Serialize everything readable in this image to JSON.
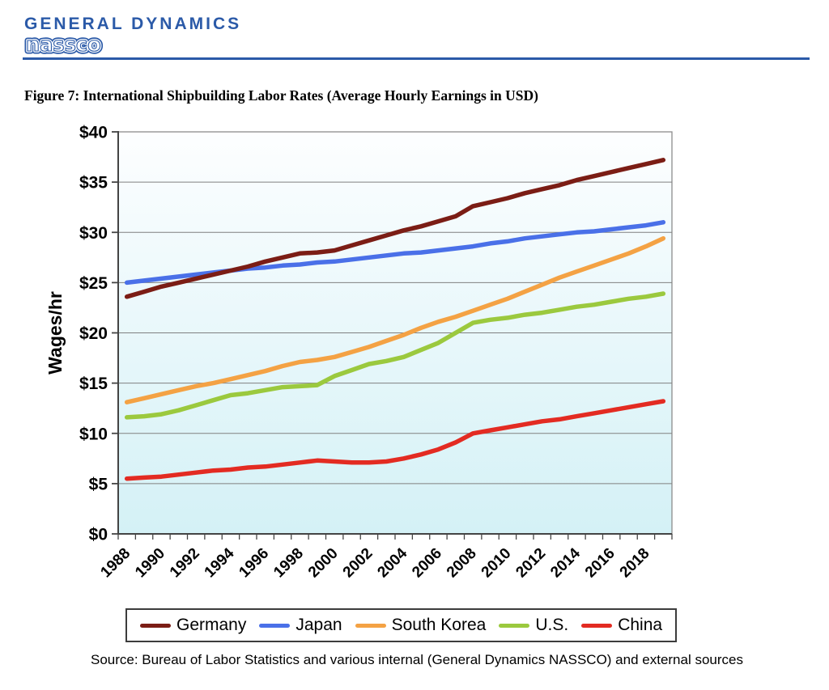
{
  "header": {
    "brand": "GENERAL DYNAMICS",
    "brand_sub": "nassco",
    "brand_color": "#2b5aa8"
  },
  "figure_title": "Figure 7: International Shipbuilding Labor Rates (Average Hourly Earnings in USD)",
  "source_note": "Source: Bureau of Labor Statistics and various internal (General Dynamics NASSCO) and external sources",
  "chart_data": {
    "type": "line",
    "title": "",
    "xlabel": "",
    "ylabel": "Wages/hr",
    "ylim": [
      0,
      40
    ],
    "ytick_step": 5,
    "ytick_labels": [
      "$0",
      "$5",
      "$10",
      "$15",
      "$20",
      "$25",
      "$30",
      "$35",
      "$40"
    ],
    "grid": true,
    "gridline_color": "#808080",
    "plot_border_color": "#8c8c8c",
    "axis_color": "#444444",
    "plot_bg_gradient": [
      "#fdfeff",
      "#d4f1f6"
    ],
    "legend_position": "bottom",
    "x": [
      1988,
      1989,
      1990,
      1991,
      1992,
      1993,
      1994,
      1995,
      1996,
      1997,
      1998,
      1999,
      2000,
      2001,
      2002,
      2003,
      2004,
      2005,
      2006,
      2007,
      2008,
      2009,
      2010,
      2011,
      2012,
      2013,
      2014,
      2015,
      2016,
      2017,
      2018,
      2019
    ],
    "xtick_labels": [
      "1988",
      "1990",
      "1992",
      "1994",
      "1996",
      "1998",
      "2000",
      "2002",
      "2004",
      "2006",
      "2008",
      "2010",
      "2012",
      "2014",
      "2016",
      "2018"
    ],
    "series": [
      {
        "name": "Germany",
        "color": "#7b1d15",
        "values": [
          23.6,
          24.1,
          24.6,
          25.0,
          25.4,
          25.8,
          26.2,
          26.6,
          27.1,
          27.5,
          27.9,
          28.0,
          28.2,
          28.7,
          29.2,
          29.7,
          30.2,
          30.6,
          31.1,
          31.6,
          32.6,
          33.0,
          33.4,
          33.9,
          34.3,
          34.7,
          35.2,
          35.6,
          36.0,
          36.4,
          36.8,
          37.2
        ]
      },
      {
        "name": "Japan",
        "color": "#4a70e8",
        "values": [
          25.0,
          25.2,
          25.4,
          25.6,
          25.8,
          26.0,
          26.2,
          26.4,
          26.5,
          26.7,
          26.8,
          27.0,
          27.1,
          27.3,
          27.5,
          27.7,
          27.9,
          28.0,
          28.2,
          28.4,
          28.6,
          28.9,
          29.1,
          29.4,
          29.6,
          29.8,
          30.0,
          30.1,
          30.3,
          30.5,
          30.7,
          31.0
        ]
      },
      {
        "name": "South Korea",
        "color": "#f4a244",
        "values": [
          13.1,
          13.5,
          13.9,
          14.3,
          14.7,
          15.0,
          15.4,
          15.8,
          16.2,
          16.7,
          17.1,
          17.3,
          17.6,
          18.1,
          18.6,
          19.2,
          19.8,
          20.5,
          21.1,
          21.6,
          22.2,
          22.8,
          23.4,
          24.1,
          24.8,
          25.5,
          26.1,
          26.7,
          27.3,
          27.9,
          28.6,
          29.4
        ]
      },
      {
        "name": "U.S.",
        "color": "#9bc93e",
        "values": [
          11.6,
          11.7,
          11.9,
          12.3,
          12.8,
          13.3,
          13.8,
          14.0,
          14.3,
          14.6,
          14.7,
          14.8,
          15.7,
          16.3,
          16.9,
          17.2,
          17.6,
          18.3,
          19.0,
          20.0,
          21.0,
          21.3,
          21.5,
          21.8,
          22.0,
          22.3,
          22.6,
          22.8,
          23.1,
          23.4,
          23.6,
          23.9
        ]
      },
      {
        "name": "China",
        "color": "#e32b22",
        "values": [
          5.5,
          5.6,
          5.7,
          5.9,
          6.1,
          6.3,
          6.4,
          6.6,
          6.7,
          6.9,
          7.1,
          7.3,
          7.2,
          7.1,
          7.1,
          7.2,
          7.5,
          7.9,
          8.4,
          9.1,
          10.0,
          10.3,
          10.6,
          10.9,
          11.2,
          11.4,
          11.7,
          12.0,
          12.3,
          12.6,
          12.9,
          13.2
        ]
      }
    ]
  }
}
